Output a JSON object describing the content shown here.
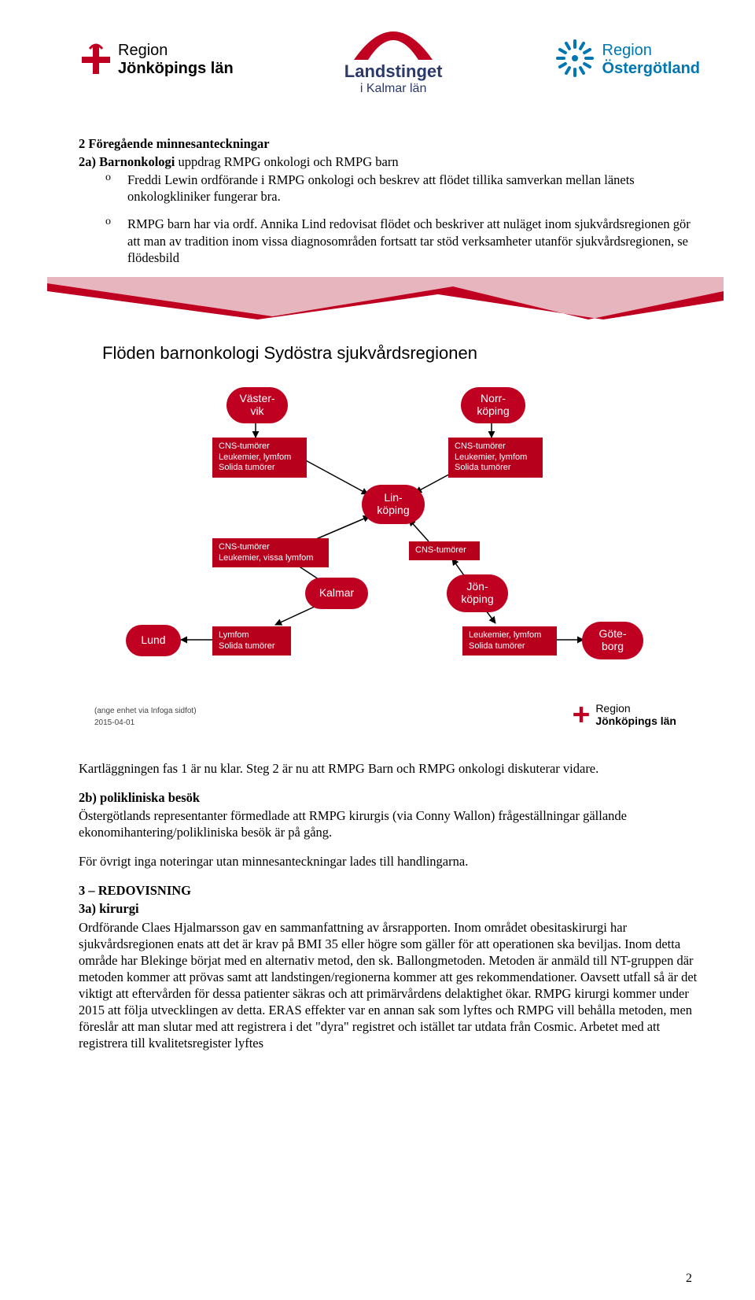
{
  "logos": {
    "jonkoping": {
      "line1": "Region",
      "line2": "Jönköpings län"
    },
    "kalmar": {
      "line1": "Landstinget",
      "line2": "i Kalmar län"
    },
    "oster": {
      "line1": "Region",
      "line2": "Östergötland"
    }
  },
  "colors": {
    "brand_red": "#c00020",
    "dark_red": "#b7001c",
    "kalmar_blue": "#2b3a6b",
    "oster_blue": "#0077b3",
    "text_black": "#000000"
  },
  "sec2": {
    "heading": "2 Föregående minnesanteckningar",
    "subA": "2a) Barnonkologi ",
    "subA_rest": "uppdrag RMPG onkologi och RMPG barn",
    "bullet1": "Freddi Lewin ordförande i RMPG onkologi och beskrev att flödet tillika samverkan mellan länets onkologkliniker fungerar bra.",
    "bullet2": "RMPG barn har via ordf. Annika Lind redovisat flödet och beskriver att nuläget inom sjukvårdsregionen gör att man av tradition inom vissa diagnosområden fortsatt tar stöd verksamheter utanför sjukvårdsregionen, se flödesbild"
  },
  "diagram": {
    "title": "Flöden barnonkologi Sydöstra sjukvårdsregionen",
    "ovals": {
      "vastervik": {
        "l1": "Väster-",
        "l2": "vik"
      },
      "norrkoping": {
        "l1": "Norr-",
        "l2": "köping"
      },
      "linkoping": {
        "l1": "Lin-",
        "l2": "köping"
      },
      "kalmar": {
        "l1": "Kalmar"
      },
      "jonkoping": {
        "l1": "Jön-",
        "l2": "köping"
      },
      "lund": {
        "l1": "Lund"
      },
      "goteborg": {
        "l1": "Göte-",
        "l2": "borg"
      }
    },
    "boxes": {
      "b1": "CNS-tumörer\nLeukemier, lymfom\nSolida tumörer",
      "b2": "CNS-tumörer\nLeukemier, lymfom\nSolida tumörer",
      "b3": "CNS-tumörer\nLeukemier, vissa lymfom",
      "b4": "CNS-tumörer",
      "b5": "Lymfom\nSolida tumörer",
      "b6": "Leukemier, lymfom\nSolida tumörer"
    },
    "footer_note": "(ange enhet via Infoga sidfot)",
    "footer_date": "2015-04-01",
    "footer_logo_l1": "Region",
    "footer_logo_l2": "Jönköpings län"
  },
  "after_diag": {
    "p1": "Kartläggningen fas 1 är nu klar. Steg 2 är nu att RMPG Barn och RMPG onkologi diskuterar vidare.",
    "subB": "2b) polikliniska besök",
    "p2": "Östergötlands representanter förmedlade att RMPG kirurgis (via Conny Wallon) frågeställningar gällande ekonomihantering/polikliniska besök är på gång.",
    "p3": "För övrigt inga noteringar utan minnesanteckningar lades till handlingarna."
  },
  "sec3": {
    "heading": "3 – REDOVISNING",
    "subA": "3a) kirurgi",
    "body": "Ordförande Claes Hjalmarsson gav en sammanfattning av årsrapporten. Inom området obesitaskirurgi har sjukvårdsregionen enats att det är krav på BMI 35 eller högre som gäller för att operationen ska beviljas. Inom detta område har Blekinge börjat med en alternativ metod, den sk. Ballongmetoden. Metoden är anmäld till NT-gruppen där metoden kommer att prövas samt att landstingen/regionerna kommer att ges rekommendationer. Oavsett utfall så är det viktigt att eftervården för dessa patienter säkras och att primärvårdens delaktighet ökar. RMPG kirurgi kommer under 2015 att följa utvecklingen av detta. ERAS effekter var en annan sak som lyftes och RMPG vill behålla metoden, men föreslår att man slutar med att registrera i det \"dyra\" registret och istället tar utdata från Cosmic. Arbetet med att registrera till kvalitetsregister lyftes"
  },
  "page_number": "2"
}
